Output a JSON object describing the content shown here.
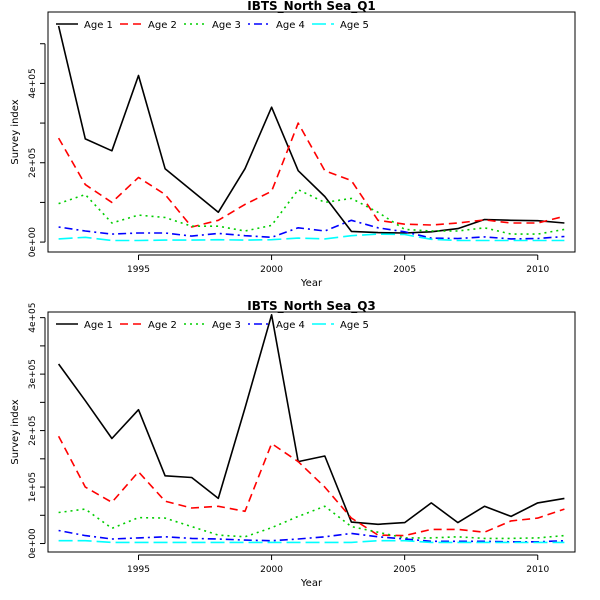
{
  "chart_data": [
    {
      "type": "line",
      "title": "IBTS_North Sea_Q1",
      "xlabel": "Year",
      "ylabel": "Survey index",
      "xlim": [
        1991.6,
        2011.4
      ],
      "ylim": [
        -25000,
        580000
      ],
      "xticks": [
        1995,
        2000,
        2005,
        2010
      ],
      "yticks": [
        0,
        200000,
        400000
      ],
      "ytick_labels": [
        "0e+00",
        "2e+05",
        "4e+05"
      ],
      "grid": false,
      "legend": "top",
      "x": [
        1992,
        1993,
        1994,
        1995,
        1996,
        1997,
        1998,
        1999,
        2000,
        2001,
        2002,
        2003,
        2004,
        2005,
        2006,
        2007,
        2008,
        2009,
        2010,
        2011
      ],
      "series": [
        {
          "name": "Age 1",
          "color": "#000000",
          "dash": "solid",
          "values": [
            545000,
            260000,
            230000,
            420000,
            185000,
            130000,
            75000,
            185000,
            340000,
            180000,
            115000,
            27000,
            24000,
            23000,
            26000,
            34000,
            57000,
            55000,
            54000,
            48000
          ]
        },
        {
          "name": "Age 2",
          "color": "#ff0000",
          "dash": "dashed",
          "values": [
            262000,
            145000,
            100000,
            163000,
            120000,
            38000,
            55000,
            95000,
            128000,
            300000,
            180000,
            155000,
            55000,
            45000,
            43000,
            48000,
            56000,
            48000,
            48000,
            65000
          ]
        },
        {
          "name": "Age 3",
          "color": "#00cd00",
          "dash": "dotted",
          "values": [
            97000,
            120000,
            48000,
            68000,
            62000,
            40000,
            40000,
            28000,
            42000,
            132000,
            100000,
            110000,
            75000,
            32000,
            28000,
            28000,
            36000,
            20000,
            20000,
            32000
          ]
        },
        {
          "name": "Age 4",
          "color": "#0000ff",
          "dash": "dotdash",
          "values": [
            38000,
            28000,
            20000,
            23000,
            23000,
            15000,
            22000,
            16000,
            12000,
            36000,
            28000,
            55000,
            36000,
            26000,
            10000,
            9000,
            13000,
            8000,
            9000,
            14000
          ]
        },
        {
          "name": "Age 5",
          "color": "#00ffff",
          "dash": "longdash",
          "values": [
            8000,
            12000,
            4000,
            4000,
            5000,
            5000,
            6000,
            5000,
            6000,
            10000,
            8000,
            16000,
            20000,
            19000,
            7000,
            4000,
            4000,
            4000,
            4000,
            4000
          ]
        }
      ]
    },
    {
      "type": "line",
      "title": "IBTS_North Sea_Q3",
      "xlabel": "Year",
      "ylabel": "Survey index",
      "xlim": [
        1991.6,
        2011.4
      ],
      "ylim": [
        -15000,
        410000
      ],
      "xticks": [
        1995,
        2000,
        2005,
        2010
      ],
      "yticks": [
        0,
        100000,
        200000,
        300000,
        400000
      ],
      "ytick_labels": [
        "0e+00",
        "1e+05",
        "2e+05",
        "3e+05",
        "4e+05"
      ],
      "grid": false,
      "legend": "top",
      "x": [
        1992,
        1993,
        1994,
        1995,
        1996,
        1997,
        1998,
        1999,
        2000,
        2001,
        2002,
        2003,
        2004,
        2005,
        2006,
        2007,
        2008,
        2009,
        2010,
        2011
      ],
      "series": [
        {
          "name": "Age 1",
          "color": "#000000",
          "dash": "solid",
          "values": [
            318000,
            253000,
            186000,
            237000,
            120000,
            117000,
            80000,
            240000,
            405000,
            145000,
            155000,
            38000,
            34000,
            37000,
            72000,
            37000,
            66000,
            48000,
            72000,
            80000
          ]
        },
        {
          "name": "Age 2",
          "color": "#ff0000",
          "dash": "dashed",
          "values": [
            190000,
            100000,
            73000,
            127000,
            75000,
            63000,
            66000,
            57000,
            177000,
            145000,
            100000,
            45000,
            15000,
            14000,
            25000,
            25000,
            20000,
            40000,
            45000,
            61000
          ]
        },
        {
          "name": "Age 3",
          "color": "#00cd00",
          "dash": "dotted",
          "values": [
            55000,
            61000,
            27000,
            46000,
            45000,
            30000,
            15000,
            12000,
            28000,
            48000,
            66000,
            30000,
            20000,
            10000,
            10000,
            12000,
            9000,
            9000,
            10000,
            14000
          ]
        },
        {
          "name": "Age 4",
          "color": "#0000ff",
          "dash": "dotdash",
          "values": [
            23000,
            14000,
            8000,
            10000,
            12000,
            9000,
            8000,
            6000,
            5000,
            8000,
            12000,
            18000,
            12000,
            8000,
            4000,
            4000,
            4000,
            3000,
            3000,
            5000
          ]
        },
        {
          "name": "Age 5",
          "color": "#00ffff",
          "dash": "longdash",
          "values": [
            5000,
            5000,
            2000,
            2000,
            2000,
            2000,
            2000,
            2000,
            2000,
            2000,
            2000,
            2000,
            5000,
            5000,
            2000,
            2000,
            2000,
            2000,
            2000,
            2000
          ]
        }
      ]
    }
  ]
}
